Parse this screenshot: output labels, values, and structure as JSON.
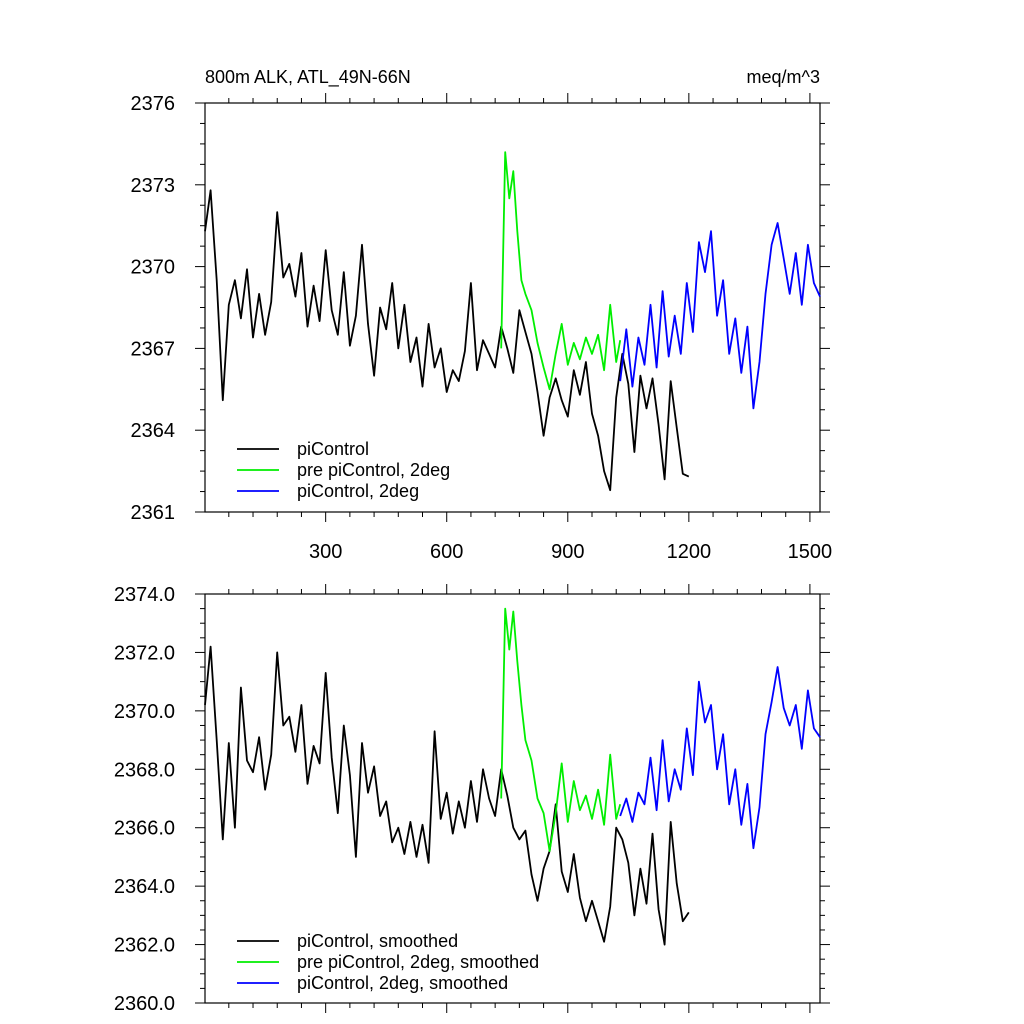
{
  "chart_data": [
    {
      "type": "line",
      "title": "800m ALK, ATL_49N-66N",
      "unit_label": "meq/m^3",
      "xlim": [
        1,
        1525
      ],
      "ylim": [
        2361,
        2376
      ],
      "x_ticks": [
        300,
        600,
        900,
        1200,
        1500
      ],
      "x_tick_labels": [
        "300",
        "600",
        "900",
        "1200",
        "1500"
      ],
      "y_ticks": [
        2361,
        2364,
        2367,
        2370,
        2373,
        2376
      ],
      "y_tick_labels": [
        "2361",
        "2364",
        "2367",
        "2370",
        "2373",
        "2376"
      ],
      "grid": false,
      "legend_position": "bottom-left",
      "series": [
        {
          "name": "piControl",
          "color": "#000000",
          "x": [
            1,
            15,
            30,
            45,
            60,
            75,
            90,
            105,
            120,
            135,
            150,
            165,
            180,
            195,
            210,
            225,
            240,
            255,
            270,
            285,
            300,
            315,
            330,
            345,
            360,
            375,
            390,
            405,
            420,
            435,
            450,
            465,
            480,
            495,
            510,
            525,
            540,
            555,
            570,
            585,
            600,
            615,
            630,
            645,
            660,
            675,
            690,
            705,
            720,
            735,
            750,
            765,
            780,
            795,
            810,
            825,
            840,
            855,
            870,
            885,
            900,
            915,
            930,
            945,
            960,
            975,
            990,
            1005,
            1020,
            1035,
            1050,
            1065,
            1080,
            1095,
            1110,
            1125,
            1140,
            1155,
            1170,
            1185,
            1200
          ],
          "values": [
            2371.3,
            2372.8,
            2369.5,
            2365.1,
            2368.6,
            2369.5,
            2368.1,
            2369.9,
            2367.4,
            2369.0,
            2367.5,
            2368.7,
            2372.0,
            2369.6,
            2370.1,
            2368.9,
            2370.5,
            2367.8,
            2369.3,
            2368.0,
            2370.6,
            2368.4,
            2367.5,
            2369.8,
            2367.1,
            2368.2,
            2370.8,
            2367.9,
            2366.0,
            2368.5,
            2367.7,
            2369.4,
            2367.0,
            2368.6,
            2366.5,
            2367.4,
            2365.6,
            2367.9,
            2366.3,
            2367.0,
            2365.4,
            2366.2,
            2365.8,
            2366.9,
            2369.4,
            2366.2,
            2367.3,
            2366.8,
            2366.3,
            2367.8,
            2367.0,
            2366.1,
            2368.4,
            2367.6,
            2366.8,
            2365.4,
            2363.8,
            2365.2,
            2365.9,
            2365.1,
            2364.5,
            2366.2,
            2365.3,
            2366.5,
            2364.6,
            2363.8,
            2362.5,
            2361.8,
            2365.2,
            2366.8,
            2365.7,
            2363.2,
            2366.0,
            2364.8,
            2365.9,
            2364.2,
            2362.2,
            2365.8,
            2364.1,
            2362.4,
            2362.3
          ]
        },
        {
          "name": "pre piControl, 2deg",
          "color": "#00ee00",
          "x": [
            735,
            745,
            755,
            765,
            775,
            785,
            795,
            810,
            825,
            840,
            855,
            870,
            885,
            900,
            915,
            930,
            945,
            960,
            975,
            990,
            1005,
            1020,
            1030
          ],
          "values": [
            2367.0,
            2374.2,
            2372.5,
            2373.5,
            2371.3,
            2369.5,
            2369.0,
            2368.4,
            2367.2,
            2366.3,
            2365.5,
            2366.8,
            2367.9,
            2366.4,
            2367.2,
            2366.6,
            2367.4,
            2366.8,
            2367.5,
            2366.2,
            2368.6,
            2366.5,
            2367.3
          ]
        },
        {
          "name": "piControl, 2deg",
          "color": "#0000ff",
          "x": [
            1030,
            1045,
            1060,
            1075,
            1090,
            1105,
            1120,
            1135,
            1150,
            1165,
            1180,
            1195,
            1210,
            1225,
            1240,
            1255,
            1270,
            1285,
            1300,
            1315,
            1330,
            1345,
            1360,
            1375,
            1390,
            1405,
            1420,
            1435,
            1450,
            1465,
            1480,
            1495,
            1510,
            1525
          ],
          "values": [
            2365.8,
            2367.7,
            2365.6,
            2367.4,
            2366.4,
            2368.6,
            2366.3,
            2369.1,
            2366.7,
            2368.2,
            2366.8,
            2369.4,
            2367.6,
            2370.9,
            2369.8,
            2371.3,
            2368.2,
            2369.5,
            2366.8,
            2368.1,
            2366.1,
            2367.8,
            2364.8,
            2366.5,
            2369.0,
            2370.8,
            2371.6,
            2370.3,
            2369.0,
            2370.5,
            2368.6,
            2370.8,
            2369.4,
            2368.9
          ]
        }
      ]
    },
    {
      "type": "line",
      "title": "",
      "xlim": [
        1,
        1525
      ],
      "ylim": [
        2360.0,
        2374.0
      ],
      "x_ticks": [
        300,
        600,
        900,
        1200,
        1500
      ],
      "y_ticks": [
        2360.0,
        2362.0,
        2364.0,
        2366.0,
        2368.0,
        2370.0,
        2372.0,
        2374.0
      ],
      "y_tick_labels": [
        "2360.0",
        "2362.0",
        "2364.0",
        "2366.0",
        "2368.0",
        "2370.0",
        "2372.0",
        "2374.0"
      ],
      "grid": false,
      "legend_position": "bottom-left",
      "series": [
        {
          "name": "piControl, smoothed",
          "color": "#000000",
          "x": [
            1,
            15,
            30,
            45,
            60,
            75,
            90,
            105,
            120,
            135,
            150,
            165,
            180,
            195,
            210,
            225,
            240,
            255,
            270,
            285,
            300,
            315,
            330,
            345,
            360,
            375,
            390,
            405,
            420,
            435,
            450,
            465,
            480,
            495,
            510,
            525,
            540,
            555,
            570,
            585,
            600,
            615,
            630,
            645,
            660,
            675,
            690,
            705,
            720,
            735,
            750,
            765,
            780,
            795,
            810,
            825,
            840,
            855,
            870,
            885,
            900,
            915,
            930,
            945,
            960,
            975,
            990,
            1005,
            1020,
            1035,
            1050,
            1065,
            1080,
            1095,
            1110,
            1125,
            1140,
            1155,
            1170,
            1185,
            1200
          ],
          "values": [
            2370.2,
            2372.2,
            2369.0,
            2365.6,
            2368.9,
            2366.0,
            2370.8,
            2368.3,
            2367.9,
            2369.1,
            2367.3,
            2368.5,
            2372.0,
            2369.5,
            2369.8,
            2368.6,
            2370.2,
            2367.5,
            2368.8,
            2368.2,
            2371.3,
            2368.4,
            2366.5,
            2369.5,
            2367.8,
            2365.0,
            2368.9,
            2367.2,
            2368.1,
            2366.4,
            2366.9,
            2365.5,
            2366.0,
            2365.1,
            2366.2,
            2365.0,
            2366.1,
            2364.8,
            2369.3,
            2366.3,
            2367.2,
            2365.8,
            2366.9,
            2366.0,
            2367.6,
            2366.2,
            2368.0,
            2367.0,
            2366.4,
            2368.0,
            2367.1,
            2366.0,
            2365.6,
            2365.9,
            2364.4,
            2363.5,
            2364.6,
            2365.2,
            2366.8,
            2364.5,
            2363.8,
            2365.1,
            2363.6,
            2362.8,
            2363.5,
            2362.8,
            2362.1,
            2363.3,
            2366.0,
            2365.6,
            2364.8,
            2363.0,
            2364.6,
            2363.4,
            2365.8,
            2363.2,
            2362.0,
            2366.2,
            2364.1,
            2362.8,
            2363.1
          ]
        },
        {
          "name": "pre piControl, 2deg, smoothed",
          "color": "#00ee00",
          "x": [
            735,
            745,
            755,
            765,
            775,
            785,
            795,
            810,
            825,
            840,
            855,
            870,
            885,
            900,
            915,
            930,
            945,
            960,
            975,
            990,
            1005,
            1020,
            1030
          ],
          "values": [
            2367.0,
            2373.5,
            2372.1,
            2373.4,
            2371.7,
            2370.2,
            2369.0,
            2368.3,
            2367.0,
            2366.5,
            2365.2,
            2366.5,
            2368.2,
            2366.2,
            2367.6,
            2366.6,
            2367.1,
            2366.3,
            2367.3,
            2366.1,
            2368.5,
            2366.3,
            2366.8
          ]
        },
        {
          "name": "piControl, 2deg, smoothed",
          "color": "#0000ff",
          "x": [
            1030,
            1045,
            1060,
            1075,
            1090,
            1105,
            1120,
            1135,
            1150,
            1165,
            1180,
            1195,
            1210,
            1225,
            1240,
            1255,
            1270,
            1285,
            1300,
            1315,
            1330,
            1345,
            1360,
            1375,
            1390,
            1405,
            1420,
            1435,
            1450,
            1465,
            1480,
            1495,
            1510,
            1525
          ],
          "values": [
            2366.4,
            2367.0,
            2366.2,
            2367.2,
            2366.8,
            2368.4,
            2366.6,
            2369.0,
            2366.9,
            2368.0,
            2367.3,
            2369.4,
            2367.8,
            2371.0,
            2369.6,
            2370.2,
            2368.0,
            2369.2,
            2366.8,
            2368.0,
            2366.1,
            2367.5,
            2365.3,
            2366.7,
            2369.2,
            2370.3,
            2371.5,
            2370.1,
            2369.5,
            2370.2,
            2368.7,
            2370.7,
            2369.4,
            2369.1
          ]
        }
      ]
    }
  ]
}
